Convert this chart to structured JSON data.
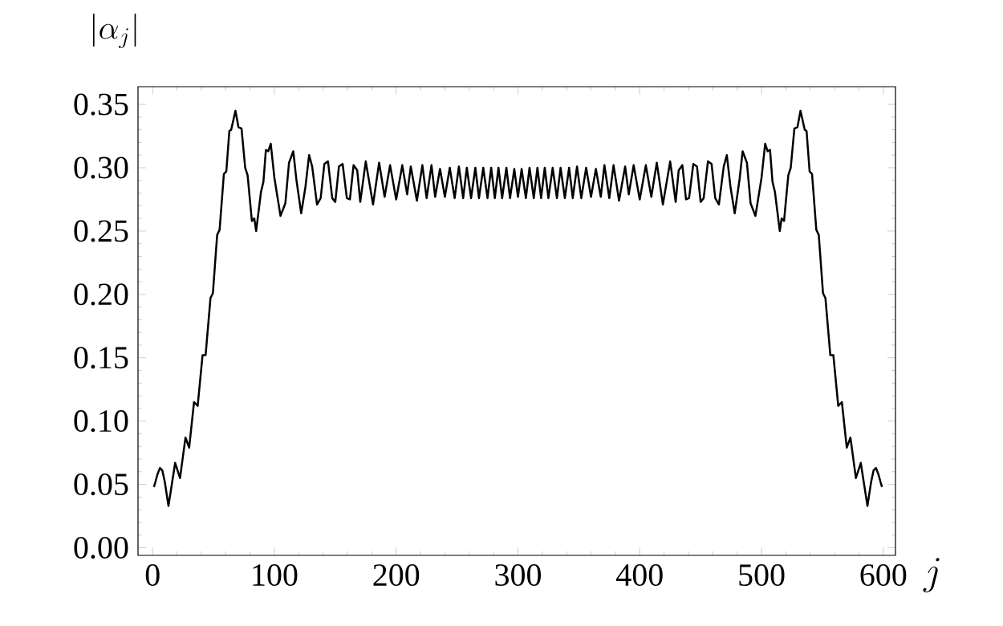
{
  "chart_data": {
    "type": "line",
    "xlabel": "j",
    "ylabel": "|\\alpha_j|",
    "xlim": [
      -12,
      610
    ],
    "ylim": [
      -0.006,
      0.364
    ],
    "xticks": [
      0,
      100,
      200,
      300,
      400,
      500,
      600
    ],
    "yticks": [
      {
        "value": 0,
        "label": "0.00"
      },
      {
        "value": 0.05,
        "label": "0.05"
      },
      {
        "value": 0.1,
        "label": "0.10"
      },
      {
        "value": 0.15,
        "label": "0.15"
      },
      {
        "value": 0.2,
        "label": "0.20"
      },
      {
        "value": 0.25,
        "label": "0.25"
      },
      {
        "value": 0.3,
        "label": "0.30"
      },
      {
        "value": 0.35,
        "label": "0.35"
      }
    ],
    "grid": false,
    "marker": "none",
    "line_style": "solid",
    "series": [
      {
        "color": "#000000",
        "x": [
          1,
          2,
          4,
          6,
          8,
          10,
          13,
          18.5,
          22.5,
          27,
          30,
          34,
          37,
          41,
          43.5,
          47.5,
          49.5,
          53,
          55,
          58.5,
          60.5,
          63,
          64.5,
          68,
          70.5,
          73,
          76,
          78,
          81.5,
          83.5,
          85,
          89,
          91,
          93,
          95,
          97,
          100,
          105,
          109,
          112,
          115.5,
          118,
          122,
          125.5,
          128.5,
          131,
          135,
          138,
          141,
          144,
          147.5,
          150,
          153,
          156,
          159.5,
          162,
          165,
          168,
          170.5,
          175,
          181,
          186,
          190.5,
          195,
          200,
          205,
          209,
          212,
          217,
          221.5,
          225,
          229,
          232,
          236,
          240,
          244,
          248,
          251.5,
          255,
          258,
          261.5,
          265,
          268,
          271.5,
          275,
          278,
          281,
          284,
          287,
          290.5,
          293.5,
          297,
          300,
          303,
          306.5,
          309.5,
          313,
          316,
          319,
          322,
          325,
          328.5,
          332,
          335,
          338.5,
          342,
          345,
          348.5,
          352,
          356,
          360,
          364,
          368,
          371,
          375,
          378.5,
          383,
          388,
          391,
          395,
          400,
          405,
          409.5,
          414,
          419,
          425,
          429.5,
          432,
          435,
          438,
          440.5,
          444,
          447,
          450,
          452.5,
          456,
          459,
          462,
          465,
          469,
          471.5,
          474.5,
          478,
          482,
          484.5,
          488,
          491,
          495,
          500,
          503,
          505,
          507,
          509,
          511,
          515,
          516.5,
          518.5,
          522,
          524,
          527,
          529.5,
          532,
          535.5,
          537,
          539.5,
          541.5,
          545,
          547,
          550.5,
          552.5,
          556.5,
          559,
          563,
          566,
          570,
          573,
          577.5,
          581.5,
          587,
          590,
          592,
          594,
          596,
          598,
          599
        ],
        "values": [
          0.048,
          0.051,
          0.058,
          0.063,
          0.061,
          0.052,
          0.033,
          0.067,
          0.055,
          0.087,
          0.079,
          0.115,
          0.112,
          0.152,
          0.152,
          0.197,
          0.201,
          0.247,
          0.251,
          0.295,
          0.297,
          0.329,
          0.33,
          0.345,
          0.332,
          0.331,
          0.3,
          0.294,
          0.258,
          0.26,
          0.25,
          0.281,
          0.289,
          0.314,
          0.313,
          0.319,
          0.292,
          0.262,
          0.272,
          0.304,
          0.313,
          0.291,
          0.264,
          0.285,
          0.31,
          0.301,
          0.271,
          0.276,
          0.303,
          0.305,
          0.276,
          0.273,
          0.301,
          0.303,
          0.276,
          0.275,
          0.302,
          0.298,
          0.273,
          0.305,
          0.271,
          0.304,
          0.277,
          0.302,
          0.275,
          0.302,
          0.279,
          0.301,
          0.274,
          0.302,
          0.276,
          0.302,
          0.277,
          0.299,
          0.277,
          0.3,
          0.276,
          0.301,
          0.276,
          0.3,
          0.276,
          0.3,
          0.276,
          0.3,
          0.276,
          0.3,
          0.276,
          0.3,
          0.276,
          0.3,
          0.276,
          0.299,
          0.277,
          0.299,
          0.276,
          0.3,
          0.276,
          0.3,
          0.276,
          0.3,
          0.276,
          0.3,
          0.276,
          0.3,
          0.276,
          0.3,
          0.276,
          0.301,
          0.276,
          0.3,
          0.277,
          0.299,
          0.277,
          0.302,
          0.276,
          0.302,
          0.274,
          0.301,
          0.279,
          0.302,
          0.275,
          0.302,
          0.277,
          0.304,
          0.271,
          0.305,
          0.273,
          0.298,
          0.302,
          0.275,
          0.276,
          0.303,
          0.301,
          0.273,
          0.276,
          0.305,
          0.303,
          0.276,
          0.271,
          0.301,
          0.31,
          0.285,
          0.264,
          0.291,
          0.313,
          0.304,
          0.272,
          0.262,
          0.292,
          0.319,
          0.313,
          0.314,
          0.289,
          0.281,
          0.25,
          0.26,
          0.258,
          0.294,
          0.3,
          0.331,
          0.332,
          0.345,
          0.33,
          0.329,
          0.297,
          0.295,
          0.251,
          0.247,
          0.201,
          0.197,
          0.152,
          0.152,
          0.112,
          0.115,
          0.079,
          0.087,
          0.055,
          0.067,
          0.033,
          0.052,
          0.061,
          0.063,
          0.058,
          0.051,
          0.048
        ]
      }
    ]
  }
}
